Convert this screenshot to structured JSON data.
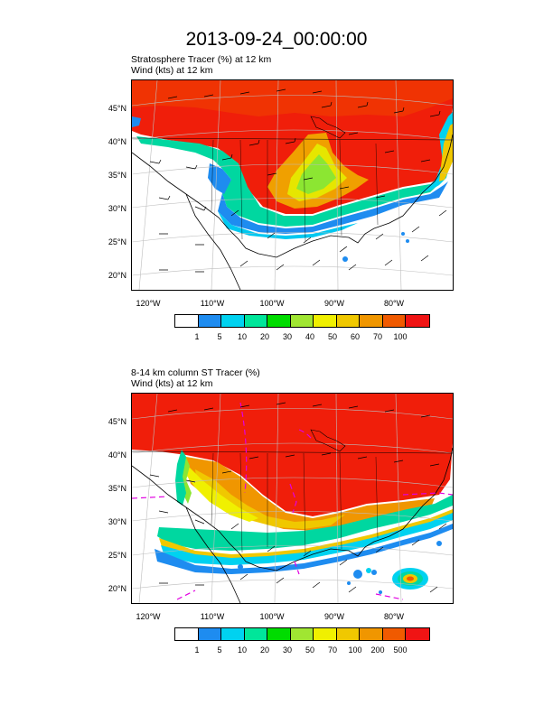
{
  "title": "2013-09-24_00:00:00",
  "panels": [
    {
      "line1": "Stratosphere Tracer   (%)     at   12 km",
      "line2": "Wind   (kts)     at   12 km",
      "colorbar_labels": [
        "1",
        "5",
        "10",
        "20",
        "30",
        "40",
        "50",
        "60",
        "70",
        "100"
      ]
    },
    {
      "line1": "8-14 km column ST Tracer   (%)",
      "line2": "Wind   (kts)     at   12 km",
      "colorbar_labels": [
        "1",
        "5",
        "10",
        "20",
        "30",
        "50",
        "70",
        "100",
        "200",
        "500"
      ]
    }
  ],
  "lat_labels": [
    "45°N",
    "40°N",
    "35°N",
    "30°N",
    "25°N",
    "20°N"
  ],
  "lon_labels": [
    "120°W",
    "110°W",
    "100°W",
    "90°W",
    "80°W"
  ],
  "colorbar_colors": [
    "#ffffff",
    "#1e8cf0",
    "#00d2f0",
    "#00e69a",
    "#00dc00",
    "#a0e632",
    "#f0f000",
    "#f0c800",
    "#f09600",
    "#f05a00",
    "#f01414"
  ]
}
